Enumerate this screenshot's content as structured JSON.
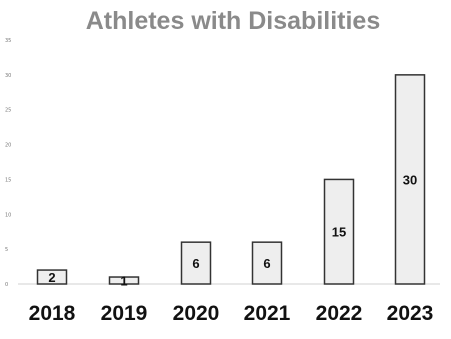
{
  "chart_data": {
    "type": "bar",
    "title": "Athletes with Disabilities",
    "categories": [
      "2018",
      "2019",
      "2020",
      "2021",
      "2022",
      "2023"
    ],
    "values": [
      2,
      1,
      6,
      6,
      15,
      30
    ],
    "data_labels": [
      "2",
      "1",
      "6",
      "6",
      "15",
      "30"
    ],
    "yticks": [
      "0",
      "5",
      "10",
      "15",
      "20",
      "25",
      "30",
      "35"
    ],
    "ylim": [
      0,
      35
    ],
    "xlabel": "",
    "ylabel": "",
    "grid": false,
    "colors": {
      "bar_fill": "#eeeeee",
      "bar_stroke": "#333333",
      "title": "#8a8a8a"
    }
  }
}
